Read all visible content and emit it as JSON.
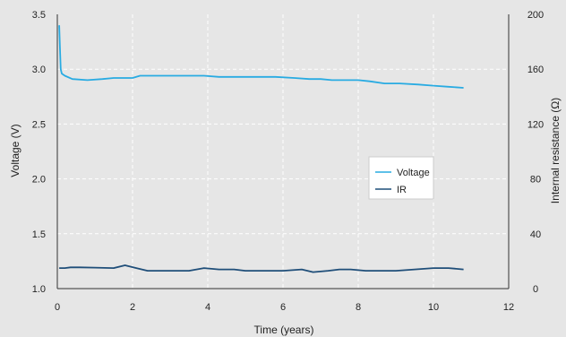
{
  "chart_data": {
    "type": "line",
    "xlabel": "Time (years)",
    "ylabel": "Voltage (V)",
    "y2label": "Internal resistance (Ω)",
    "xlim": [
      0,
      12
    ],
    "ylim": [
      1.0,
      3.5
    ],
    "y2lim": [
      0,
      200
    ],
    "xticks": [
      "0",
      "2",
      "4",
      "6",
      "8",
      "10",
      "12"
    ],
    "yticks": [
      "1.0",
      "1.5",
      "2.0",
      "2.5",
      "3.0",
      "3.5"
    ],
    "y2ticks": [
      "0",
      "40",
      "80",
      "120",
      "160",
      "200"
    ],
    "grid": true,
    "legend": "center-right",
    "series": [
      {
        "name": "Voltage",
        "axis": "left",
        "color": "#29abe2",
        "x": [
          0.05,
          0.07,
          0.09,
          0.12,
          0.2,
          0.4,
          0.8,
          1.2,
          1.5,
          1.8,
          2.0,
          2.2,
          2.8,
          3.5,
          3.9,
          4.3,
          4.7,
          5.2,
          5.8,
          6.3,
          6.7,
          7.0,
          7.3,
          7.6,
          8.0,
          8.3,
          8.7,
          9.1,
          9.6,
          10.0,
          10.4,
          10.8
        ],
        "y": [
          3.4,
          3.2,
          3.0,
          2.96,
          2.94,
          2.91,
          2.9,
          2.91,
          2.92,
          2.92,
          2.92,
          2.94,
          2.94,
          2.94,
          2.94,
          2.93,
          2.93,
          2.93,
          2.93,
          2.92,
          2.91,
          2.91,
          2.9,
          2.9,
          2.9,
          2.89,
          2.87,
          2.87,
          2.86,
          2.85,
          2.84,
          2.83
        ]
      },
      {
        "name": "IR",
        "axis": "right",
        "color": "#1f4e79",
        "x": [
          0.05,
          0.2,
          0.35,
          0.6,
          1.0,
          1.5,
          1.8,
          2.1,
          2.4,
          3.0,
          3.5,
          3.9,
          4.3,
          4.7,
          5.0,
          5.5,
          6.0,
          6.5,
          6.8,
          7.2,
          7.5,
          7.8,
          8.2,
          8.6,
          9.0,
          9.5,
          10.0,
          10.4,
          10.8
        ],
        "y": [
          15,
          15,
          15.5,
          15.5,
          15.3,
          15,
          17,
          15,
          13,
          13,
          13,
          15,
          14,
          14,
          13,
          13,
          13,
          14,
          12,
          13,
          14,
          14,
          13,
          13,
          13,
          14,
          15,
          15,
          14
        ]
      }
    ]
  }
}
